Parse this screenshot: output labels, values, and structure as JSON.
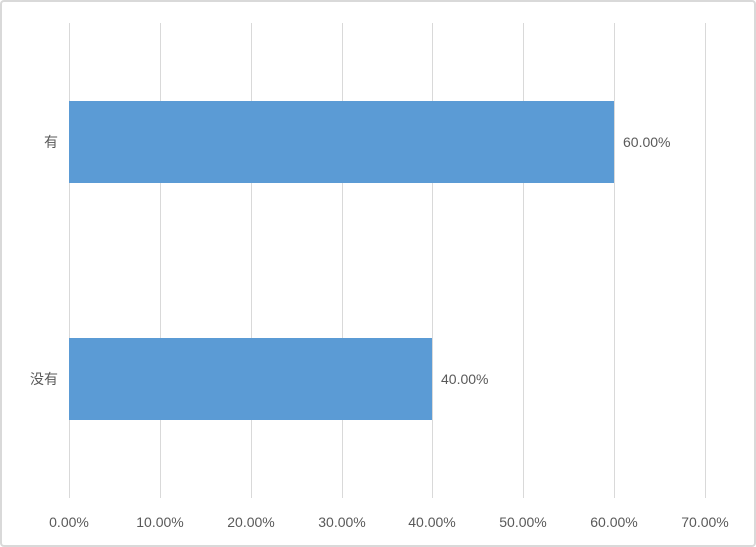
{
  "chart_data": {
    "type": "bar",
    "orientation": "horizontal",
    "title": "",
    "categories": [
      "有",
      "没有"
    ],
    "values": [
      60.0,
      40.0
    ],
    "data_labels": [
      "60.00%",
      "40.00%"
    ],
    "x_tick_values": [
      0,
      10,
      20,
      30,
      40,
      50,
      60,
      70
    ],
    "x_tick_labels": [
      "0.00%",
      "10.00%",
      "20.00%",
      "30.00%",
      "40.00%",
      "50.00%",
      "60.00%",
      "70.00%"
    ],
    "xlim": [
      0,
      70
    ],
    "grid": "vertical-major",
    "legend": "none",
    "colors": {
      "bar": "#5B9BD5",
      "gridline": "#D9D9D9",
      "axis_text": "#595959",
      "label_text": "#595959",
      "background": "#FFFFFF",
      "border": "#D9D9D9"
    }
  }
}
